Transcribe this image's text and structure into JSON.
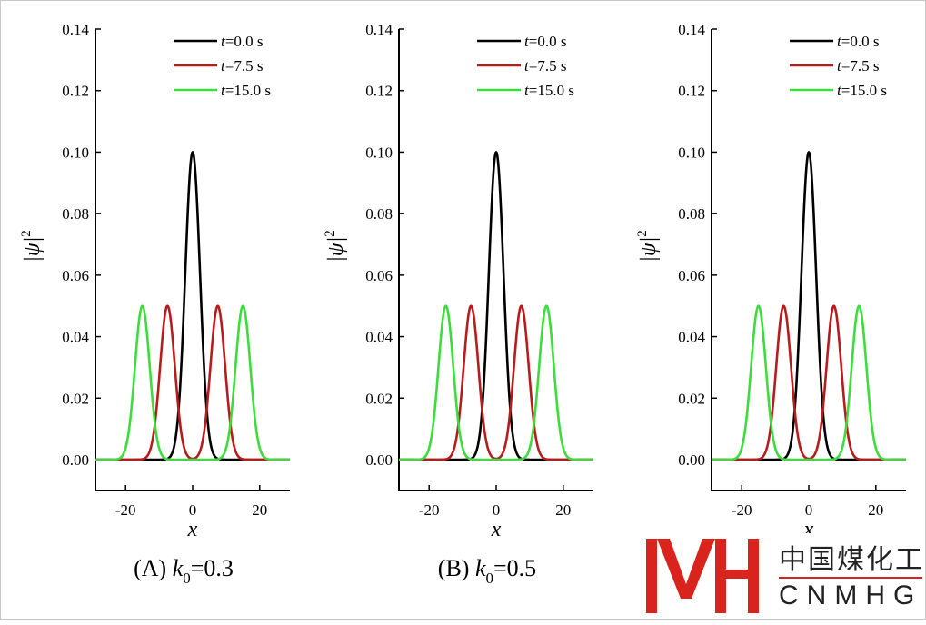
{
  "chart_data": [
    {
      "type": "line",
      "caption": "(A) k0=0.3",
      "caption_prefix": "(A) ",
      "caption_var": "k",
      "caption_sub": "0",
      "caption_value": "=0.3",
      "xlabel": "x",
      "ylabel": "|ψ|",
      "ylabel_sup": "2",
      "xlim": [
        -29,
        29
      ],
      "ylim": [
        0,
        0.14
      ],
      "xticks": [
        "-20",
        "0",
        "20"
      ],
      "yticks": [
        "0.00",
        "0.02",
        "0.04",
        "0.06",
        "0.08",
        "0.10",
        "0.12",
        "0.14"
      ],
      "legend_position": "top-right",
      "series": [
        {
          "name": "t=0.0 s",
          "name_var": "t",
          "name_rest": "=0.0 s",
          "color": "#000000",
          "peaks": [
            0
          ],
          "amplitude": 0.1,
          "sigma": 2.2
        },
        {
          "name": "t=7.5 s",
          "name_var": "t",
          "name_rest": "=7.5 s",
          "color": "#b71c1c",
          "peaks": [
            -7.5,
            7.5
          ],
          "amplitude": 0.05,
          "sigma": 2.2
        },
        {
          "name": "t=15.0 s",
          "name_var": "t",
          "name_rest": "=15.0 s",
          "color": "#3ddc3d",
          "peaks": [
            -15,
            15
          ],
          "amplitude": 0.05,
          "sigma": 2.2
        }
      ]
    },
    {
      "type": "line",
      "caption": "(B) k0=0.5",
      "caption_prefix": "(B) ",
      "caption_var": "k",
      "caption_sub": "0",
      "caption_value": "=0.5",
      "xlabel": "x",
      "ylabel": "|ψ|",
      "ylabel_sup": "2",
      "xlim": [
        -29,
        29
      ],
      "ylim": [
        0,
        0.14
      ],
      "xticks": [
        "-20",
        "0",
        "20"
      ],
      "yticks": [
        "0.00",
        "0.02",
        "0.04",
        "0.06",
        "0.08",
        "0.10",
        "0.12",
        "0.14"
      ],
      "legend_position": "top-right",
      "series": [
        {
          "name": "t=0.0 s",
          "name_var": "t",
          "name_rest": "=0.0 s",
          "color": "#000000",
          "peaks": [
            0
          ],
          "amplitude": 0.1,
          "sigma": 2.2
        },
        {
          "name": "t=7.5 s",
          "name_var": "t",
          "name_rest": "=7.5 s",
          "color": "#b71c1c",
          "peaks": [
            -7.5,
            7.5
          ],
          "amplitude": 0.05,
          "sigma": 2.2
        },
        {
          "name": "t=15.0 s",
          "name_var": "t",
          "name_rest": "=15.0 s",
          "color": "#3ddc3d",
          "peaks": [
            -15,
            15
          ],
          "amplitude": 0.05,
          "sigma": 2.2
        }
      ]
    },
    {
      "type": "line",
      "xlabel": "x",
      "ylabel": "|ψ|",
      "ylabel_sup": "2",
      "xlim": [
        -29,
        29
      ],
      "ylim": [
        0,
        0.14
      ],
      "xticks": [
        "-20",
        "0",
        "20"
      ],
      "yticks": [
        "0.00",
        "0.02",
        "0.04",
        "0.06",
        "0.08",
        "0.10",
        "0.12",
        "0.14"
      ],
      "legend_position": "top-right",
      "series": [
        {
          "name": "t=0.0 s",
          "name_var": "t",
          "name_rest": "=0.0 s",
          "color": "#000000",
          "peaks": [
            0
          ],
          "amplitude": 0.1,
          "sigma": 2.2
        },
        {
          "name": "t=7.5 s",
          "name_var": "t",
          "name_rest": "=7.5 s",
          "color": "#b71c1c",
          "peaks": [
            -7.5,
            7.5
          ],
          "amplitude": 0.05,
          "sigma": 2.2
        },
        {
          "name": "t=15.0 s",
          "name_var": "t",
          "name_rest": "=15.0 s",
          "color": "#3ddc3d",
          "peaks": [
            -15,
            15
          ],
          "amplitude": 0.05,
          "sigma": 2.2
        }
      ]
    }
  ],
  "logo": {
    "cn_text": "中国煤化工",
    "en_text": "CNMHG",
    "color": "#d9231d"
  }
}
